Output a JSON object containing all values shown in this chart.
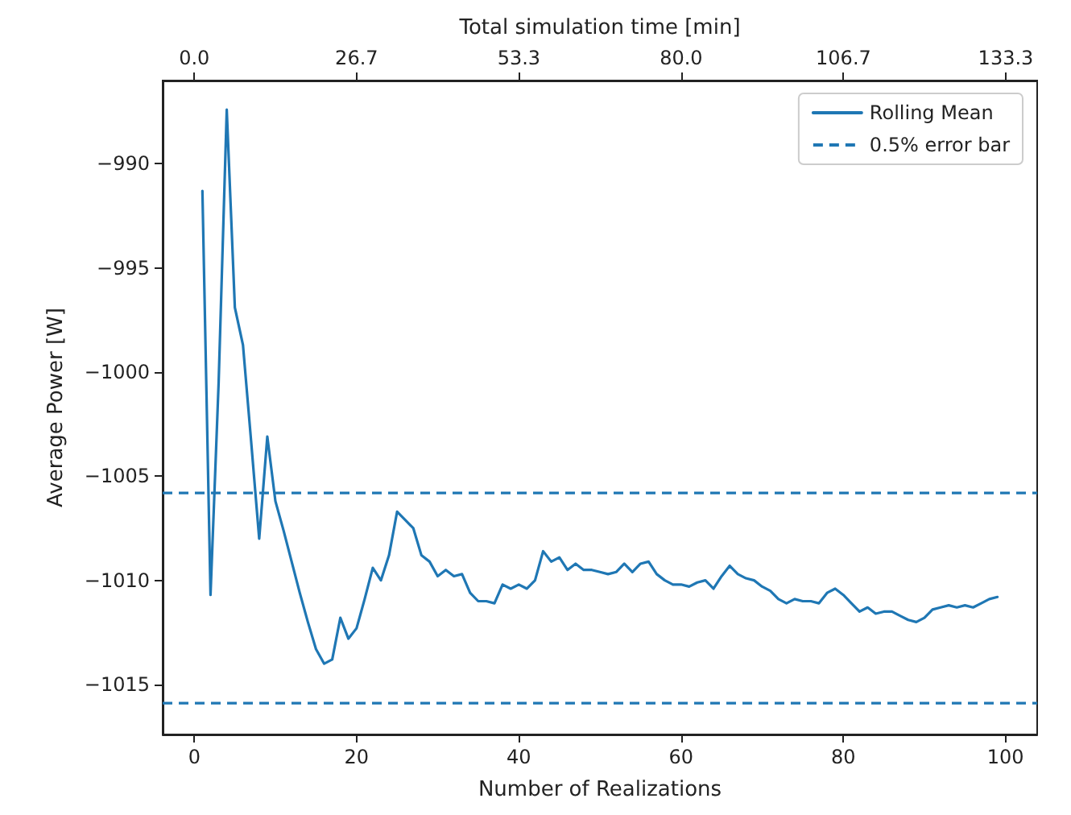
{
  "chart_data": {
    "type": "line",
    "xlabel": "Number of Realizations",
    "ylabel": "Average Power [W]",
    "x2label": "Total simulation time [min]",
    "xlim": [
      -3.9,
      103.9
    ],
    "xticks": [
      0,
      20,
      40,
      60,
      80,
      100
    ],
    "x2lim": [
      -5.2,
      138.5
    ],
    "x2ticks": [
      {
        "value": 0,
        "label": "0.0"
      },
      {
        "value": 26.667,
        "label": "26.7"
      },
      {
        "value": 53.333,
        "label": "53.3"
      },
      {
        "value": 80,
        "label": "80.0"
      },
      {
        "value": 106.667,
        "label": "106.7"
      },
      {
        "value": 133.333,
        "label": "133.3"
      }
    ],
    "ylim": [
      -1017.4,
      -986
    ],
    "yticks": [
      -1015,
      -1010,
      -1005,
      -1000,
      -995,
      -990
    ],
    "x": [
      1,
      2,
      3,
      4,
      5,
      6,
      7,
      8,
      9,
      10,
      11,
      12,
      13,
      14,
      15,
      16,
      17,
      18,
      19,
      20,
      21,
      22,
      23,
      24,
      25,
      26,
      27,
      28,
      29,
      30,
      31,
      32,
      33,
      34,
      35,
      36,
      37,
      38,
      39,
      40,
      41,
      42,
      43,
      44,
      45,
      46,
      47,
      48,
      49,
      50,
      51,
      52,
      53,
      54,
      55,
      56,
      57,
      58,
      59,
      60,
      61,
      62,
      63,
      64,
      65,
      66,
      67,
      68,
      69,
      70,
      71,
      72,
      73,
      74,
      75,
      76,
      77,
      78,
      79,
      80,
      81,
      82,
      83,
      84,
      85,
      86,
      87,
      88,
      89,
      90,
      91,
      92,
      93,
      94,
      95,
      96,
      97,
      98,
      99
    ],
    "series": [
      {
        "name": "Rolling Mean",
        "color": "#1f77b4",
        "values": [
          -991.3,
          -1010.7,
          -1000.5,
          -987.4,
          -996.9,
          -998.7,
          -1003.3,
          -1008.0,
          -1003.1,
          -1006.2,
          -1007.6,
          -1009.1,
          -1010.6,
          -1012.0,
          -1013.3,
          -1014.0,
          -1013.8,
          -1011.8,
          -1012.8,
          -1012.3,
          -1010.9,
          -1009.4,
          -1010.0,
          -1008.8,
          -1006.7,
          -1007.1,
          -1007.5,
          -1008.8,
          -1009.1,
          -1009.8,
          -1009.5,
          -1009.8,
          -1009.7,
          -1010.6,
          -1011.0,
          -1011.0,
          -1011.1,
          -1010.2,
          -1010.4,
          -1010.2,
          -1010.4,
          -1010.0,
          -1008.6,
          -1009.1,
          -1008.9,
          -1009.5,
          -1009.2,
          -1009.5,
          -1009.5,
          -1009.6,
          -1009.7,
          -1009.6,
          -1009.2,
          -1009.6,
          -1009.2,
          -1009.1,
          -1009.7,
          -1010.0,
          -1010.2,
          -1010.2,
          -1010.3,
          -1010.1,
          -1010.0,
          -1010.4,
          -1009.8,
          -1009.3,
          -1009.7,
          -1009.9,
          -1010.0,
          -1010.3,
          -1010.5,
          -1010.9,
          -1011.1,
          -1010.9,
          -1011.0,
          -1011.0,
          -1011.1,
          -1010.6,
          -1010.4,
          -1010.7,
          -1011.1,
          -1011.5,
          -1011.3,
          -1011.6,
          -1011.5,
          -1011.5,
          -1011.7,
          -1011.9,
          -1012.0,
          -1011.8,
          -1011.4,
          -1011.3,
          -1011.2,
          -1011.3,
          -1011.2,
          -1011.3,
          -1011.1,
          -1010.9,
          -1010.8
        ]
      }
    ],
    "ref_lines": [
      {
        "axis": "y",
        "value": -1005.8,
        "label": "0.5% error bar",
        "color": "#1f77b4",
        "line_style": "dashed"
      },
      {
        "axis": "y",
        "value": -1015.9,
        "color": "#1f77b4",
        "line_style": "dashed"
      }
    ],
    "legend": "top right",
    "grid": false,
    "marker": "none",
    "line_style": "solid"
  }
}
